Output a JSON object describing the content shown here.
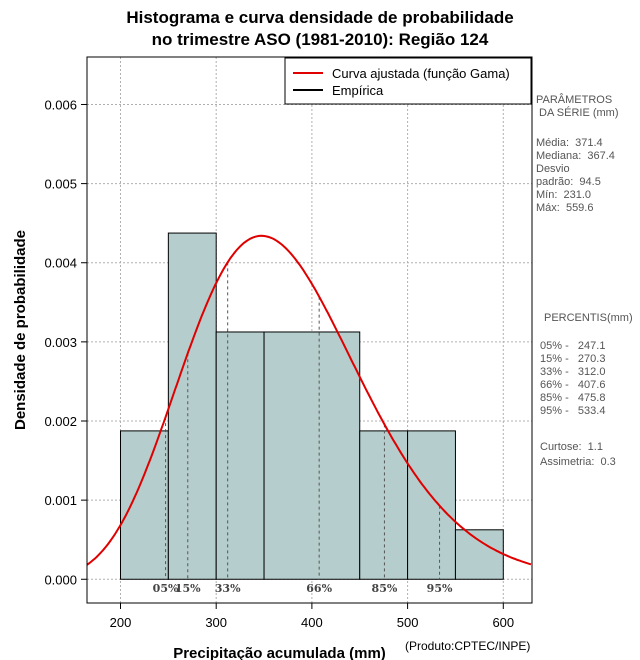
{
  "header": {
    "title_line1": "Histograma e curva densidade de probabilidade",
    "title_line2": "no trimestre ASO (1981-2010): Região 124"
  },
  "footer": {
    "credit": "(Produto:CPTEC/INPE)"
  },
  "colors": {
    "bar_fill": "#b5cecd",
    "curve": "#e00000",
    "grid": "#b0b0b0",
    "side_text": "#555555"
  },
  "chart_data": {
    "type": "bar",
    "xlabel": "Precipitação acumulada (mm)",
    "ylabel": "Densidade de probabilidade",
    "xlim": [
      165,
      630
    ],
    "ylim": [
      -0.0003,
      0.0066
    ],
    "xticks": [
      200,
      300,
      400,
      500,
      600
    ],
    "yticks": [
      0.0,
      0.001,
      0.002,
      0.003,
      0.004,
      0.005,
      0.006
    ],
    "ytick_labels": [
      "0.000",
      "0.001",
      "0.002",
      "0.003",
      "0.004",
      "0.005",
      "0.006"
    ],
    "grid": true,
    "bins": [
      {
        "from": 200,
        "to": 250,
        "density": 0.001875
      },
      {
        "from": 250,
        "to": 300,
        "density": 0.004375
      },
      {
        "from": 300,
        "to": 350,
        "density": 0.003125
      },
      {
        "from": 350,
        "to": 450,
        "density": 0.003125
      },
      {
        "from": 450,
        "to": 500,
        "density": 0.001875
      },
      {
        "from": 500,
        "to": 550,
        "density": 0.001875
      },
      {
        "from": 550,
        "to": 600,
        "density": 0.000625
      }
    ],
    "gamma_fit": {
      "mean": 371.4,
      "sd": 94.5
    },
    "legend": {
      "position": "top-right",
      "entries": [
        "Curva ajustada (função Gama)",
        "Empírica"
      ]
    },
    "percentile_markers": [
      {
        "label": "05%",
        "value": 247.1
      },
      {
        "label": "15%",
        "value": 270.3
      },
      {
        "label": "33%",
        "value": 312.0
      },
      {
        "label": "66%",
        "value": 407.6
      },
      {
        "label": "85%",
        "value": 475.8
      },
      {
        "label": "95%",
        "value": 533.4
      }
    ]
  },
  "stats_panel": {
    "heading_line1": "PARÂMETROS",
    "heading_line2": " DA SÉRIE (mm)",
    "lines": [
      "Média:  371.4",
      "Mediana:  367.4",
      "Desvio",
      "padrão:  94.5",
      "Mín:  231.0",
      "Máx:  559.6"
    ]
  },
  "percentis_panel": {
    "heading": "PERCENTIS(mm)",
    "lines": [
      "05% -   247.1",
      "15% -   270.3",
      "33% -   312.0",
      "66% -   407.6",
      "85% -   475.8",
      "95% -   533.4"
    ],
    "extra": [
      "Curtose:  1.1",
      "Assimetria:  0.3"
    ]
  }
}
